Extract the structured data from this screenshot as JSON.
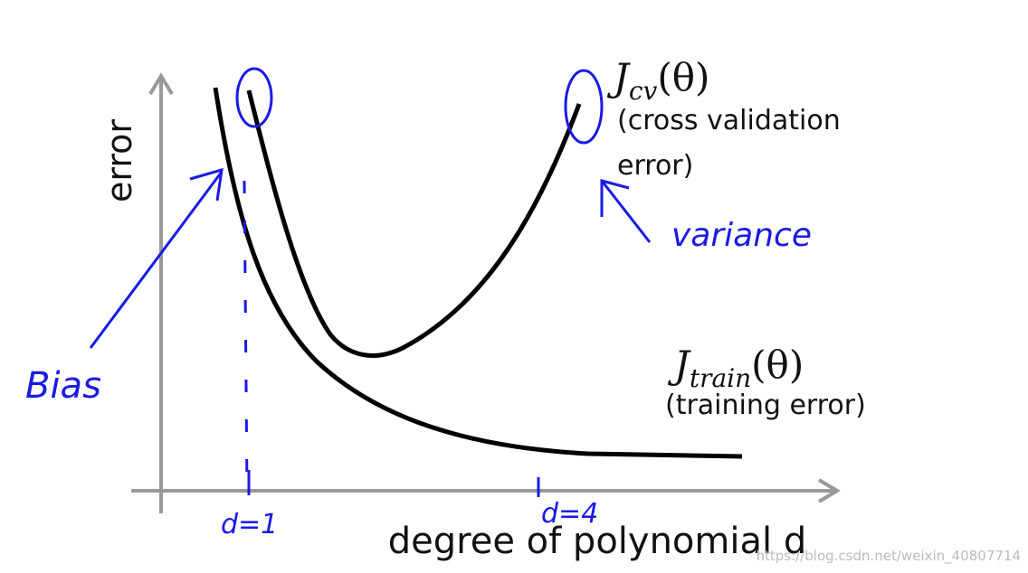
{
  "axes": {
    "y_label": "error",
    "x_label": "degree of polynomial d"
  },
  "curves": [
    {
      "symbol": "J",
      "subscript": "cv",
      "argument": "(θ)",
      "description": [
        "(cross validation",
        "error)"
      ]
    },
    {
      "symbol": "J",
      "subscript": "train",
      "argument": "(θ)",
      "description": [
        "(training error)"
      ]
    }
  ],
  "annotations": {
    "bias": "Bias",
    "variance": "variance",
    "d1": "d=1",
    "d4": "d=4"
  },
  "watermark": "https://blog.csdn.net/weixin_40807714"
}
